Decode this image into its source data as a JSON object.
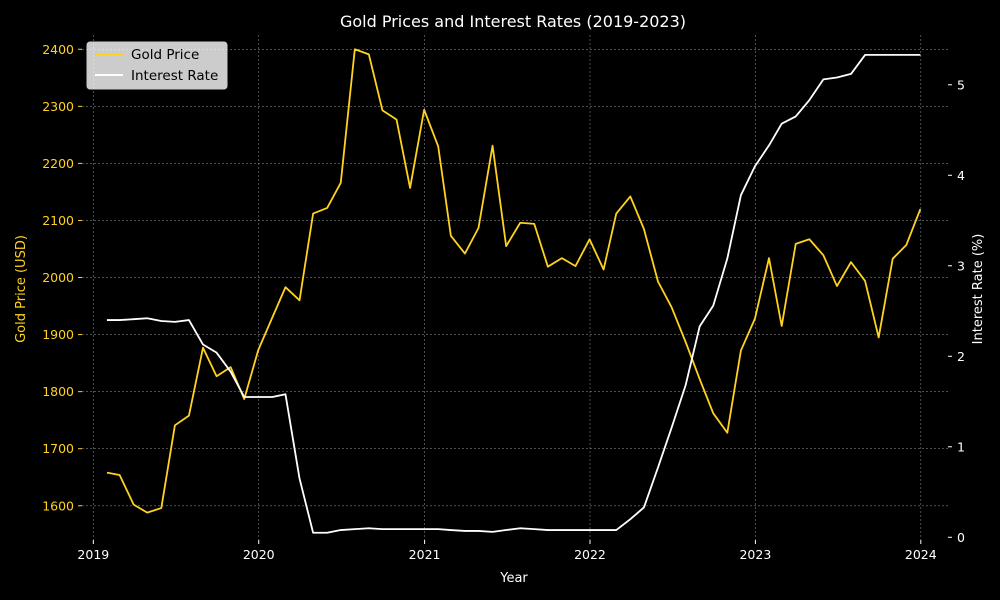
{
  "chart_data": {
    "type": "line",
    "title": "Gold Prices and Interest Rates (2019-2023)",
    "xlabel": "Year",
    "ylabel_left": "Gold Price (USD)",
    "ylabel_right": "Interest Rate (%)",
    "x_ticks": [
      "2019",
      "2020",
      "2021",
      "2022",
      "2023",
      "2024"
    ],
    "y_left_ticks": [
      1600,
      1700,
      1800,
      1900,
      2000,
      2100,
      2200,
      2300,
      2400
    ],
    "y_right_ticks": [
      0,
      1,
      2,
      3,
      4,
      5
    ],
    "xlim": [
      "2018-12-07",
      "2024-03-01"
    ],
    "ylim_left": [
      1540,
      2425
    ],
    "ylim_right": [
      -0.03,
      5.55
    ],
    "grid": true,
    "legend_position": "top-left",
    "colors": {
      "gold": "#FFD21F",
      "rate": "#FFFFFF",
      "background": "#000000",
      "grid": "#808080"
    },
    "x": [
      "2019-01-31",
      "2019-02-28",
      "2019-03-31",
      "2019-04-30",
      "2019-05-31",
      "2019-06-30",
      "2019-07-31",
      "2019-08-31",
      "2019-09-30",
      "2019-10-31",
      "2019-11-30",
      "2019-12-31",
      "2020-01-31",
      "2020-02-29",
      "2020-03-31",
      "2020-04-30",
      "2020-05-31",
      "2020-06-30",
      "2020-07-31",
      "2020-08-31",
      "2020-09-30",
      "2020-10-31",
      "2020-11-30",
      "2020-12-31",
      "2021-01-31",
      "2021-02-28",
      "2021-03-31",
      "2021-04-30",
      "2021-05-31",
      "2021-06-30",
      "2021-07-31",
      "2021-08-31",
      "2021-09-30",
      "2021-10-31",
      "2021-11-30",
      "2021-12-31",
      "2022-01-31",
      "2022-02-28",
      "2022-03-31",
      "2022-04-30",
      "2022-05-31",
      "2022-06-30",
      "2022-07-31",
      "2022-08-31",
      "2022-09-30",
      "2022-10-31",
      "2022-11-30",
      "2022-12-31",
      "2023-01-31",
      "2023-02-28",
      "2023-03-31",
      "2023-04-30",
      "2023-05-31",
      "2023-06-30",
      "2023-07-31",
      "2023-08-31",
      "2023-09-30",
      "2023-10-31",
      "2023-11-30",
      "2023-12-31"
    ],
    "series": [
      {
        "name": "Gold Price",
        "axis": "left",
        "color": "#FFD21F",
        "values": [
          1658,
          1654,
          1602,
          1588,
          1596,
          1741,
          1758,
          1877,
          1827,
          1843,
          1787,
          1873,
          1930,
          1983,
          1960,
          2112,
          2122,
          2166,
          2400,
          2391,
          2293,
          2277,
          2157,
          2294,
          2230,
          2073,
          2042,
          2087,
          2231,
          2055,
          2096,
          2094,
          2019,
          2034,
          2020,
          2067,
          2014,
          2112,
          2142,
          2085,
          1993,
          1948,
          1887,
          1822,
          1762,
          1728,
          1872,
          1928,
          2034,
          1915,
          2059,
          2067,
          2039,
          1985,
          2027,
          1994,
          1895,
          2033,
          2057,
          2120
        ]
      },
      {
        "name": "Interest Rate",
        "axis": "right",
        "color": "#FFFFFF",
        "values": [
          2.4,
          2.4,
          2.41,
          2.42,
          2.39,
          2.38,
          2.4,
          2.13,
          2.04,
          1.83,
          1.55,
          1.55,
          1.55,
          1.58,
          0.65,
          0.05,
          0.05,
          0.08,
          0.09,
          0.1,
          0.09,
          0.09,
          0.09,
          0.09,
          0.09,
          0.08,
          0.07,
          0.07,
          0.06,
          0.08,
          0.1,
          0.09,
          0.08,
          0.08,
          0.08,
          0.08,
          0.08,
          0.08,
          0.2,
          0.33,
          0.77,
          1.21,
          1.68,
          2.33,
          2.56,
          3.08,
          3.78,
          4.1,
          4.33,
          4.57,
          4.65,
          4.83,
          5.06,
          5.08,
          5.12,
          5.33,
          5.33,
          5.33,
          5.33,
          5.33
        ]
      }
    ]
  }
}
